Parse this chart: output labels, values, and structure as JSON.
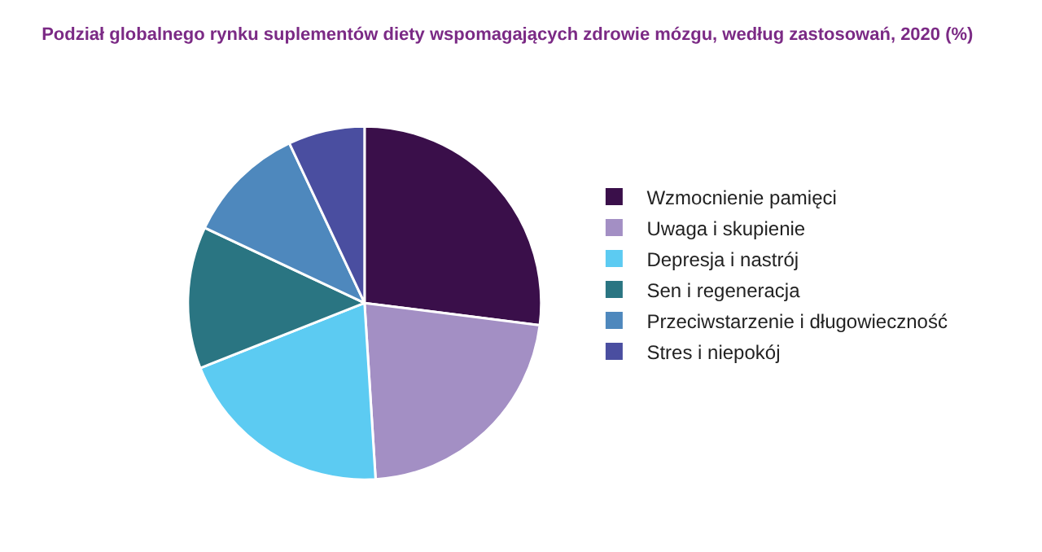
{
  "chart_data": {
    "type": "pie",
    "title": "Podział globalnego rynku suplementów diety wspomagających zdrowie mózgu, według zastosowań, 2020 (%)",
    "categories": [
      "Wzmocnienie pamięci",
      "Uwaga i skupienie",
      "Depresja i nastrój",
      "Sen i regeneracja",
      "Przeciwstarzenie i długowieczność",
      "Stres i niepokój"
    ],
    "values": [
      27,
      22,
      20,
      13,
      11,
      7
    ],
    "colors": [
      "#3a0f4a",
      "#a38fc4",
      "#5ccbf2",
      "#2a7582",
      "#4e88bd",
      "#4a4ea0"
    ],
    "legend": "right"
  }
}
